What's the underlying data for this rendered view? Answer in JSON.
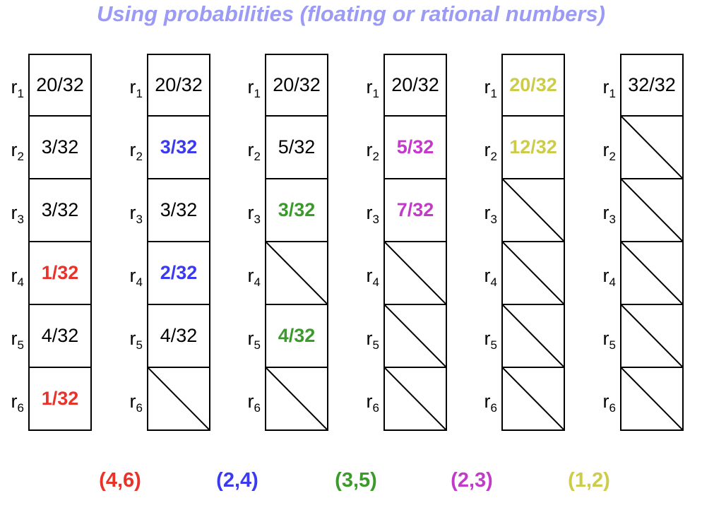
{
  "title": "Using probabilities (floating or rational numbers)",
  "row_labels": [
    {
      "base": "r",
      "sub": "1"
    },
    {
      "base": "r",
      "sub": "2"
    },
    {
      "base": "r",
      "sub": "3"
    },
    {
      "base": "r",
      "sub": "4"
    },
    {
      "base": "r",
      "sub": "5"
    },
    {
      "base": "r",
      "sub": "6"
    }
  ],
  "colors": {
    "red": "#e8322a",
    "blue": "#3a3af0",
    "green": "#3a9a2a",
    "purple": "#c23ac8",
    "olive": "#cccc4a",
    "black": "#000000"
  },
  "columns": [
    {
      "cells": [
        {
          "text": "20/32",
          "color": "black"
        },
        {
          "text": "3/32",
          "color": "black"
        },
        {
          "text": "3/32",
          "color": "black"
        },
        {
          "text": "1/32",
          "color": "red",
          "bold": true
        },
        {
          "text": "4/32",
          "color": "black"
        },
        {
          "text": "1/32",
          "color": "red",
          "bold": true
        }
      ]
    },
    {
      "cells": [
        {
          "text": "20/32",
          "color": "black"
        },
        {
          "text": "3/32",
          "color": "blue",
          "bold": true
        },
        {
          "text": "3/32",
          "color": "black"
        },
        {
          "text": "2/32",
          "color": "blue",
          "bold": true
        },
        {
          "text": "4/32",
          "color": "black"
        },
        {
          "crossed": true
        }
      ]
    },
    {
      "cells": [
        {
          "text": "20/32",
          "color": "black"
        },
        {
          "text": "5/32",
          "color": "black"
        },
        {
          "text": "3/32",
          "color": "green",
          "bold": true
        },
        {
          "crossed": true
        },
        {
          "text": "4/32",
          "color": "green",
          "bold": true
        },
        {
          "crossed": true
        }
      ]
    },
    {
      "cells": [
        {
          "text": "20/32",
          "color": "black"
        },
        {
          "text": "5/32",
          "color": "purple",
          "bold": true
        },
        {
          "text": "7/32",
          "color": "purple",
          "bold": true
        },
        {
          "crossed": true
        },
        {
          "crossed": true
        },
        {
          "crossed": true
        }
      ]
    },
    {
      "cells": [
        {
          "text": "20/32",
          "color": "olive",
          "bold": true
        },
        {
          "text": "12/32",
          "color": "olive",
          "bold": true
        },
        {
          "crossed": true
        },
        {
          "crossed": true
        },
        {
          "crossed": true
        },
        {
          "crossed": true
        }
      ]
    },
    {
      "cells": [
        {
          "text": "32/32",
          "color": "black"
        },
        {
          "crossed": true
        },
        {
          "crossed": true
        },
        {
          "crossed": true
        },
        {
          "crossed": true
        },
        {
          "crossed": true
        }
      ]
    }
  ],
  "merge_pairs": [
    {
      "text": "(4,6)",
      "color": "red"
    },
    {
      "text": "(2,4)",
      "color": "blue"
    },
    {
      "text": "(3,5)",
      "color": "green"
    },
    {
      "text": "(2,3)",
      "color": "purple"
    },
    {
      "text": "(1,2)",
      "color": "olive"
    }
  ]
}
